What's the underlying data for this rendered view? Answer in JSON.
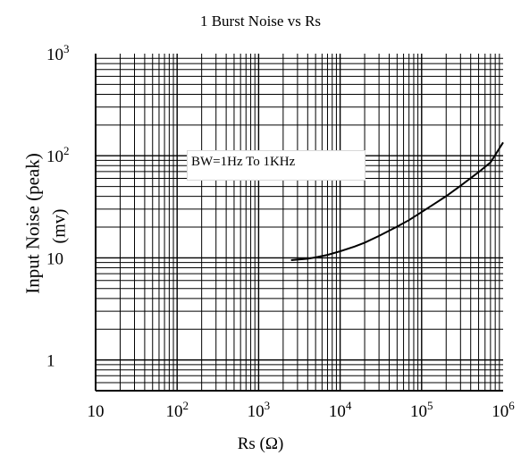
{
  "chart_data": {
    "type": "line",
    "title": "1  Burst Noise vs Rs",
    "xlabel": "Rs (Ω)",
    "ylabel": "Input Noise (peak)",
    "ylabel_unit": "(mv)",
    "x_scale": "log",
    "y_scale": "log",
    "xlim": [
      10,
      1000000
    ],
    "ylim": [
      0.5,
      1000
    ],
    "grid": true,
    "x_ticks": [
      {
        "value": 10,
        "base": "10",
        "exp": ""
      },
      {
        "value": 100,
        "base": "10",
        "exp": "2"
      },
      {
        "value": 1000,
        "base": "10",
        "exp": "3"
      },
      {
        "value": 10000,
        "base": "10",
        "exp": "4"
      },
      {
        "value": 100000,
        "base": "10",
        "exp": "5"
      },
      {
        "value": 1000000,
        "base": "10",
        "exp": "6"
      }
    ],
    "y_ticks": [
      {
        "value": 1,
        "base": "1",
        "exp": ""
      },
      {
        "value": 10,
        "base": "10",
        "exp": ""
      },
      {
        "value": 100,
        "base": "10",
        "exp": "2"
      },
      {
        "value": 1000,
        "base": "10",
        "exp": "3"
      }
    ],
    "annotation": "BW=1Hz To 1KHz",
    "series": [
      {
        "color": "#000000",
        "x": [
          2500,
          3000,
          4000,
          5000,
          7000,
          10000,
          15000,
          20000,
          30000,
          50000,
          70000,
          100000,
          150000,
          200000,
          300000,
          500000,
          700000,
          1000000
        ],
        "y": [
          9.5,
          9.6,
          9.8,
          10.1,
          10.7,
          11.6,
          12.9,
          14.1,
          16.4,
          20.2,
          23.4,
          28.1,
          34.6,
          40.2,
          50.8,
          69.0,
          86.0,
          135
        ]
      }
    ]
  }
}
